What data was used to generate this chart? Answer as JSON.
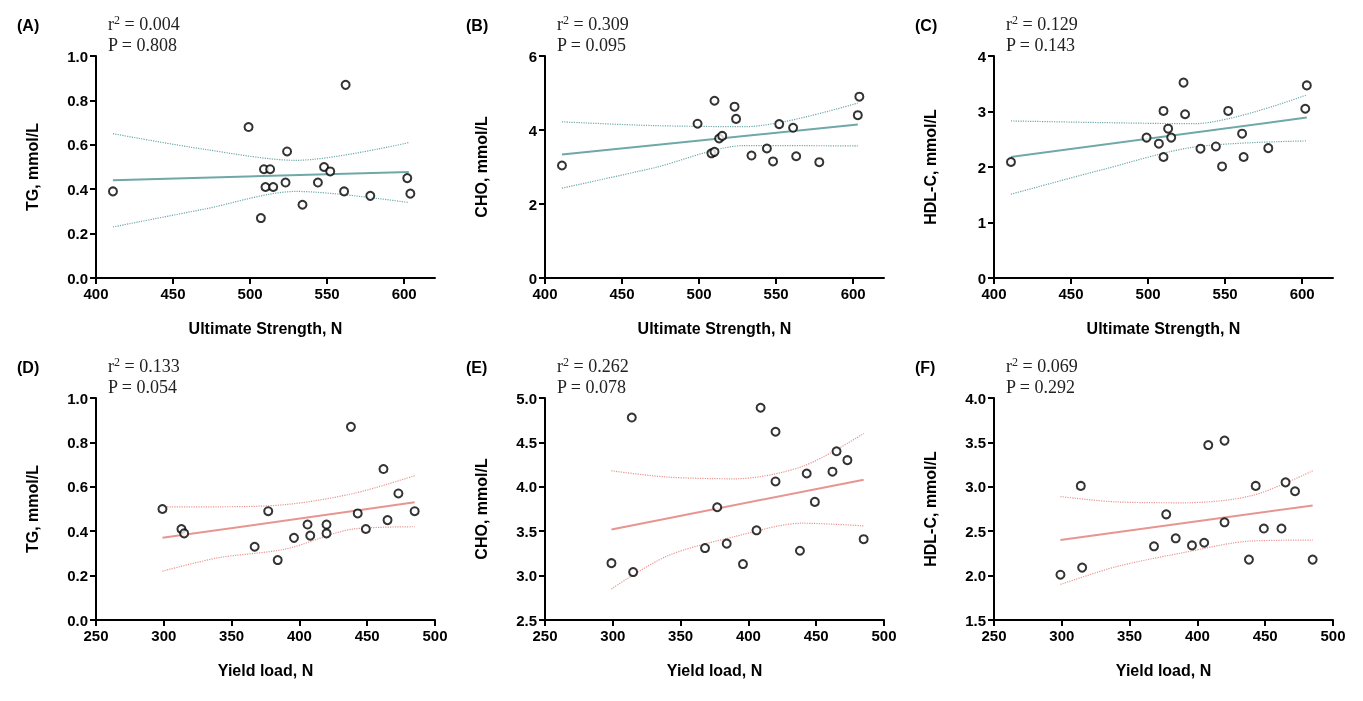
{
  "chart_data": [
    {
      "type": "scatter",
      "title": "(A)",
      "xlabel": "Ultimate Strength, N",
      "ylabel": "TG, mmol/L",
      "annotations": [
        "r$^{2}$ = 0.004",
        "P = 0.808"
      ],
      "xlim": [
        400,
        620
      ],
      "xticks": [
        400,
        450,
        500,
        550,
        600
      ],
      "ylim": [
        0,
        1
      ],
      "yticks": [
        {
          "value": 0,
          "label": "0.0"
        },
        0.2,
        0.4,
        0.6,
        0.8,
        {
          "value": 1,
          "label": "1.0"
        }
      ],
      "grid": false,
      "series": [
        {
          "marker": "circle",
          "color": "#000000",
          "x": [
            411,
            499,
            562,
            524,
            509,
            513,
            548,
            552,
            510,
            515,
            523,
            544,
            561,
            578,
            602,
            604,
            534,
            507
          ],
          "values": [
            0.39,
            0.68,
            0.87,
            0.57,
            0.49,
            0.49,
            0.5,
            0.48,
            0.41,
            0.41,
            0.43,
            0.43,
            0.39,
            0.37,
            0.45,
            0.38,
            0.33,
            0.27
          ]
        },
        {
          "type": "line",
          "marker": "none",
          "line_style": "solid",
          "color": "#6fa8a8",
          "x": [
            411,
            603
          ],
          "values": [
            0.44,
            0.478
          ]
        },
        {
          "type": "line",
          "marker": "none",
          "line_style": "dotted",
          "color": "#6fa8a8",
          "x": [
            411,
            470,
            530,
            603
          ],
          "values": [
            0.65,
            0.58,
            0.53,
            0.61
          ]
        },
        {
          "type": "line",
          "marker": "none",
          "line_style": "dotted",
          "color": "#6fa8a8",
          "x": [
            411,
            470,
            530,
            603
          ],
          "values": [
            0.23,
            0.31,
            0.39,
            0.34
          ]
        }
      ]
    },
    {
      "type": "scatter",
      "title": "(B)",
      "xlabel": "Ultimate Strength, N",
      "ylabel": "CHO, mmol/L",
      "annotations": [
        "r$^{2}$ = 0.309",
        "P = 0.095"
      ],
      "xlim": [
        400,
        620
      ],
      "xticks": [
        400,
        450,
        500,
        550,
        600
      ],
      "ylim": [
        0,
        6
      ],
      "yticks": [
        0,
        2,
        4,
        6
      ],
      "grid": false,
      "series": [
        {
          "marker": "circle",
          "color": "#000000",
          "x": [
            411,
            499,
            510,
            523,
            524,
            513,
            515,
            508,
            510,
            534,
            544,
            548,
            552,
            561,
            563,
            578,
            603,
            604
          ],
          "values": [
            3.04,
            4.17,
            4.79,
            4.63,
            4.3,
            3.77,
            3.84,
            3.37,
            3.41,
            3.31,
            3.5,
            3.15,
            4.16,
            4.06,
            3.29,
            3.13,
            4.4,
            4.9
          ]
        },
        {
          "type": "line",
          "marker": "none",
          "line_style": "solid",
          "color": "#6fa8a8",
          "x": [
            411,
            603
          ],
          "values": [
            3.34,
            4.15
          ]
        },
        {
          "type": "line",
          "marker": "none",
          "line_style": "dotted",
          "color": "#6fa8a8",
          "x": [
            411,
            470,
            530,
            603
          ],
          "values": [
            4.22,
            4.12,
            4.09,
            4.73
          ]
        },
        {
          "type": "line",
          "marker": "none",
          "line_style": "dotted",
          "color": "#6fa8a8",
          "x": [
            411,
            470,
            530,
            603
          ],
          "values": [
            2.43,
            2.97,
            3.58,
            3.57
          ]
        }
      ]
    },
    {
      "type": "scatter",
      "title": "(C)",
      "xlabel": "Ultimate Strength, N",
      "ylabel": "HDL-C, mmol/L",
      "annotations": [
        "r$^{2}$ = 0.129",
        "P = 0.143"
      ],
      "xlim": [
        400,
        620
      ],
      "xticks": [
        400,
        450,
        500,
        550,
        600
      ],
      "ylim": [
        0,
        4
      ],
      "yticks": [
        0,
        1,
        2,
        3,
        4
      ],
      "grid": false,
      "series": [
        {
          "marker": "circle",
          "color": "#000000",
          "x": [
            411,
            499,
            507,
            510,
            510,
            513,
            515,
            523,
            524,
            534,
            544,
            548,
            552,
            561,
            562,
            578,
            602,
            603
          ],
          "values": [
            2.09,
            2.53,
            2.42,
            3.01,
            2.18,
            2.69,
            2.53,
            3.52,
            2.95,
            2.33,
            2.37,
            2.01,
            3.01,
            2.6,
            2.18,
            2.34,
            3.05,
            3.47
          ]
        },
        {
          "type": "line",
          "marker": "none",
          "line_style": "solid",
          "color": "#6fa8a8",
          "x": [
            411,
            603
          ],
          "values": [
            2.18,
            2.89
          ]
        },
        {
          "type": "line",
          "marker": "none",
          "line_style": "dotted",
          "color": "#6fa8a8",
          "x": [
            411,
            470,
            530,
            603
          ],
          "values": [
            2.83,
            2.8,
            2.78,
            3.3
          ]
        },
        {
          "type": "line",
          "marker": "none",
          "line_style": "dotted",
          "color": "#6fa8a8",
          "x": [
            411,
            470,
            530,
            603
          ],
          "values": [
            1.51,
            1.95,
            2.36,
            2.47
          ]
        }
      ]
    },
    {
      "type": "scatter",
      "title": "(D)",
      "xlabel": "Yield load, N",
      "ylabel": "TG, mmol/L",
      "annotations": [
        "r$^{2}$ = 0.133",
        "P = 0.054"
      ],
      "xlim": [
        250,
        500
      ],
      "xticks": [
        250,
        300,
        350,
        400,
        450,
        500
      ],
      "ylim": [
        0,
        1
      ],
      "yticks": [
        {
          "value": 0,
          "label": "0.0"
        },
        0.2,
        0.4,
        0.6,
        0.8,
        {
          "value": 1,
          "label": "1.0"
        }
      ],
      "grid": false,
      "series": [
        {
          "marker": "circle",
          "color": "#000000",
          "x": [
            299,
            313,
            315,
            367,
            377,
            384,
            396,
            406,
            408,
            420,
            420,
            438,
            443,
            449,
            462,
            465,
            473,
            485
          ],
          "values": [
            0.5,
            0.41,
            0.39,
            0.33,
            0.49,
            0.27,
            0.37,
            0.43,
            0.38,
            0.43,
            0.39,
            0.87,
            0.48,
            0.41,
            0.68,
            0.45,
            0.57,
            0.49
          ]
        },
        {
          "type": "line",
          "marker": "none",
          "line_style": "solid",
          "color": "#e8958f",
          "x": [
            299,
            485
          ],
          "values": [
            0.37,
            0.53
          ]
        },
        {
          "type": "line",
          "marker": "none",
          "line_style": "dotted",
          "color": "#e8958f",
          "x": [
            299,
            340,
            390,
            440,
            485
          ],
          "values": [
            0.51,
            0.51,
            0.52,
            0.57,
            0.65
          ]
        },
        {
          "type": "line",
          "marker": "none",
          "line_style": "dotted",
          "color": "#e8958f",
          "x": [
            299,
            340,
            390,
            440,
            485
          ],
          "values": [
            0.22,
            0.28,
            0.32,
            0.41,
            0.42
          ]
        }
      ]
    },
    {
      "type": "scatter",
      "title": "(E)",
      "xlabel": "Yield load, N",
      "ylabel": "CHO, mmol/L",
      "annotations": [
        "r$^{2}$ = 0.262",
        "P = 0.078"
      ],
      "xlim": [
        250,
        500
      ],
      "xticks": [
        250,
        300,
        350,
        400,
        450,
        500
      ],
      "ylim": [
        2.5,
        5
      ],
      "yticks": [
        2.5,
        {
          "value": 3,
          "label": "3.0"
        },
        3.5,
        {
          "value": 4,
          "label": "4.0"
        },
        4.5,
        {
          "value": 5,
          "label": "5.0"
        }
      ],
      "grid": false,
      "series": [
        {
          "marker": "circle",
          "color": "#000000",
          "x": [
            299,
            314,
            315,
            368,
            377,
            384,
            396,
            406,
            409,
            420,
            420,
            438,
            443,
            449,
            462,
            465,
            473,
            485
          ],
          "values": [
            3.14,
            4.78,
            3.04,
            3.31,
            3.77,
            3.36,
            3.13,
            3.51,
            4.89,
            4.62,
            4.06,
            3.28,
            4.15,
            3.83,
            4.17,
            4.4,
            4.3,
            3.41
          ]
        },
        {
          "type": "line",
          "marker": "none",
          "line_style": "solid",
          "color": "#e8958f",
          "x": [
            299,
            485
          ],
          "values": [
            3.52,
            4.08
          ]
        },
        {
          "type": "line",
          "marker": "none",
          "line_style": "dotted",
          "color": "#e8958f",
          "x": [
            299,
            340,
            390,
            440,
            485
          ],
          "values": [
            4.18,
            4.11,
            4.09,
            4.23,
            4.6
          ]
        },
        {
          "type": "line",
          "marker": "none",
          "line_style": "dotted",
          "color": "#e8958f",
          "x": [
            299,
            340,
            390,
            440,
            485
          ],
          "values": [
            2.85,
            3.22,
            3.44,
            3.59,
            3.56
          ]
        }
      ]
    },
    {
      "type": "scatter",
      "title": "(F)",
      "xlabel": "Yield load, N",
      "ylabel": "HDL-C, mmol/L",
      "annotations": [
        "r$^{2}$ = 0.069",
        "P = 0.292"
      ],
      "xlim": [
        250,
        500
      ],
      "xticks": [
        250,
        300,
        350,
        400,
        450,
        500
      ],
      "ylim": [
        1.5,
        4
      ],
      "yticks": [
        1.5,
        {
          "value": 2,
          "label": "2.0"
        },
        2.5,
        {
          "value": 3,
          "label": "3.0"
        },
        3.5,
        {
          "value": 4,
          "label": "4.0"
        }
      ],
      "grid": false,
      "series": [
        {
          "marker": "circle",
          "color": "#000000",
          "x": [
            299,
            314,
            315,
            368,
            377,
            384,
            396,
            405,
            408,
            420,
            420,
            438,
            443,
            449,
            462,
            465,
            472,
            485
          ],
          "values": [
            2.01,
            3.01,
            2.09,
            2.33,
            2.69,
            2.42,
            2.34,
            2.37,
            3.47,
            3.52,
            2.6,
            2.18,
            3.01,
            2.53,
            2.53,
            3.05,
            2.95,
            2.18
          ]
        },
        {
          "type": "line",
          "marker": "none",
          "line_style": "solid",
          "color": "#e8958f",
          "x": [
            299,
            485
          ],
          "values": [
            2.4,
            2.79
          ]
        },
        {
          "type": "line",
          "marker": "none",
          "line_style": "dotted",
          "color": "#e8958f",
          "x": [
            299,
            340,
            390,
            440,
            485
          ],
          "values": [
            2.89,
            2.83,
            2.82,
            2.9,
            3.18
          ]
        },
        {
          "type": "line",
          "marker": "none",
          "line_style": "dotted",
          "color": "#e8958f",
          "x": [
            299,
            340,
            390,
            440,
            485
          ],
          "values": [
            1.9,
            2.1,
            2.26,
            2.39,
            2.4
          ]
        }
      ]
    }
  ]
}
